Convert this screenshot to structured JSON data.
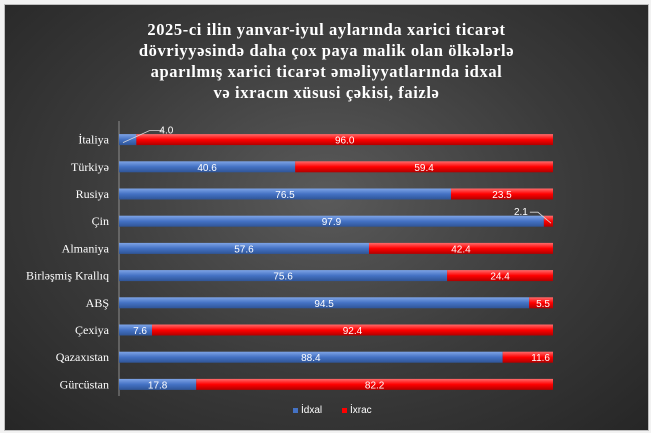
{
  "chart_data": {
    "type": "bar",
    "orientation": "horizontal",
    "stacked": "percent",
    "title_lines": [
      "2025-ci ilin yanvar-iyul aylarında xarici ticarət",
      "dövriyyəsində daha çox paya malik olan ölkələrlə",
      "aparılmış xarici ticarət əməliyyatlarında idxal",
      "və ixracın xüsusi çəkisi, faizlə"
    ],
    "categories": [
      "İtaliya",
      "Türkiyə",
      "Rusiya",
      "Çin",
      "Almaniya",
      "Birləşmiş Krallıq",
      "ABŞ",
      "Çexiya",
      "Qazaxıstan",
      "Gürcüstan"
    ],
    "series": [
      {
        "name": "İdxal",
        "color": "#4472c4",
        "values": [
          4.0,
          40.6,
          76.5,
          97.9,
          57.6,
          75.6,
          94.5,
          7.6,
          88.4,
          17.8
        ],
        "labels": [
          "4.0",
          "40.6",
          "76.5",
          "97.9",
          "57.6",
          "75.6",
          "94.5",
          "7.6",
          "88.4",
          "17.8"
        ]
      },
      {
        "name": "İxrac",
        "color": "#ff0000",
        "values": [
          96.0,
          59.4,
          23.5,
          2.1,
          42.4,
          24.4,
          5.5,
          92.4,
          11.6,
          82.2
        ],
        "labels": [
          "96.0",
          "59.4",
          "23.5",
          "2.1",
          "42.4",
          "24.4",
          "5.5",
          "92.4",
          "11.6",
          "82.2"
        ]
      }
    ],
    "xlim": [
      0,
      100
    ],
    "grid": false,
    "legend_position": "bottom"
  }
}
